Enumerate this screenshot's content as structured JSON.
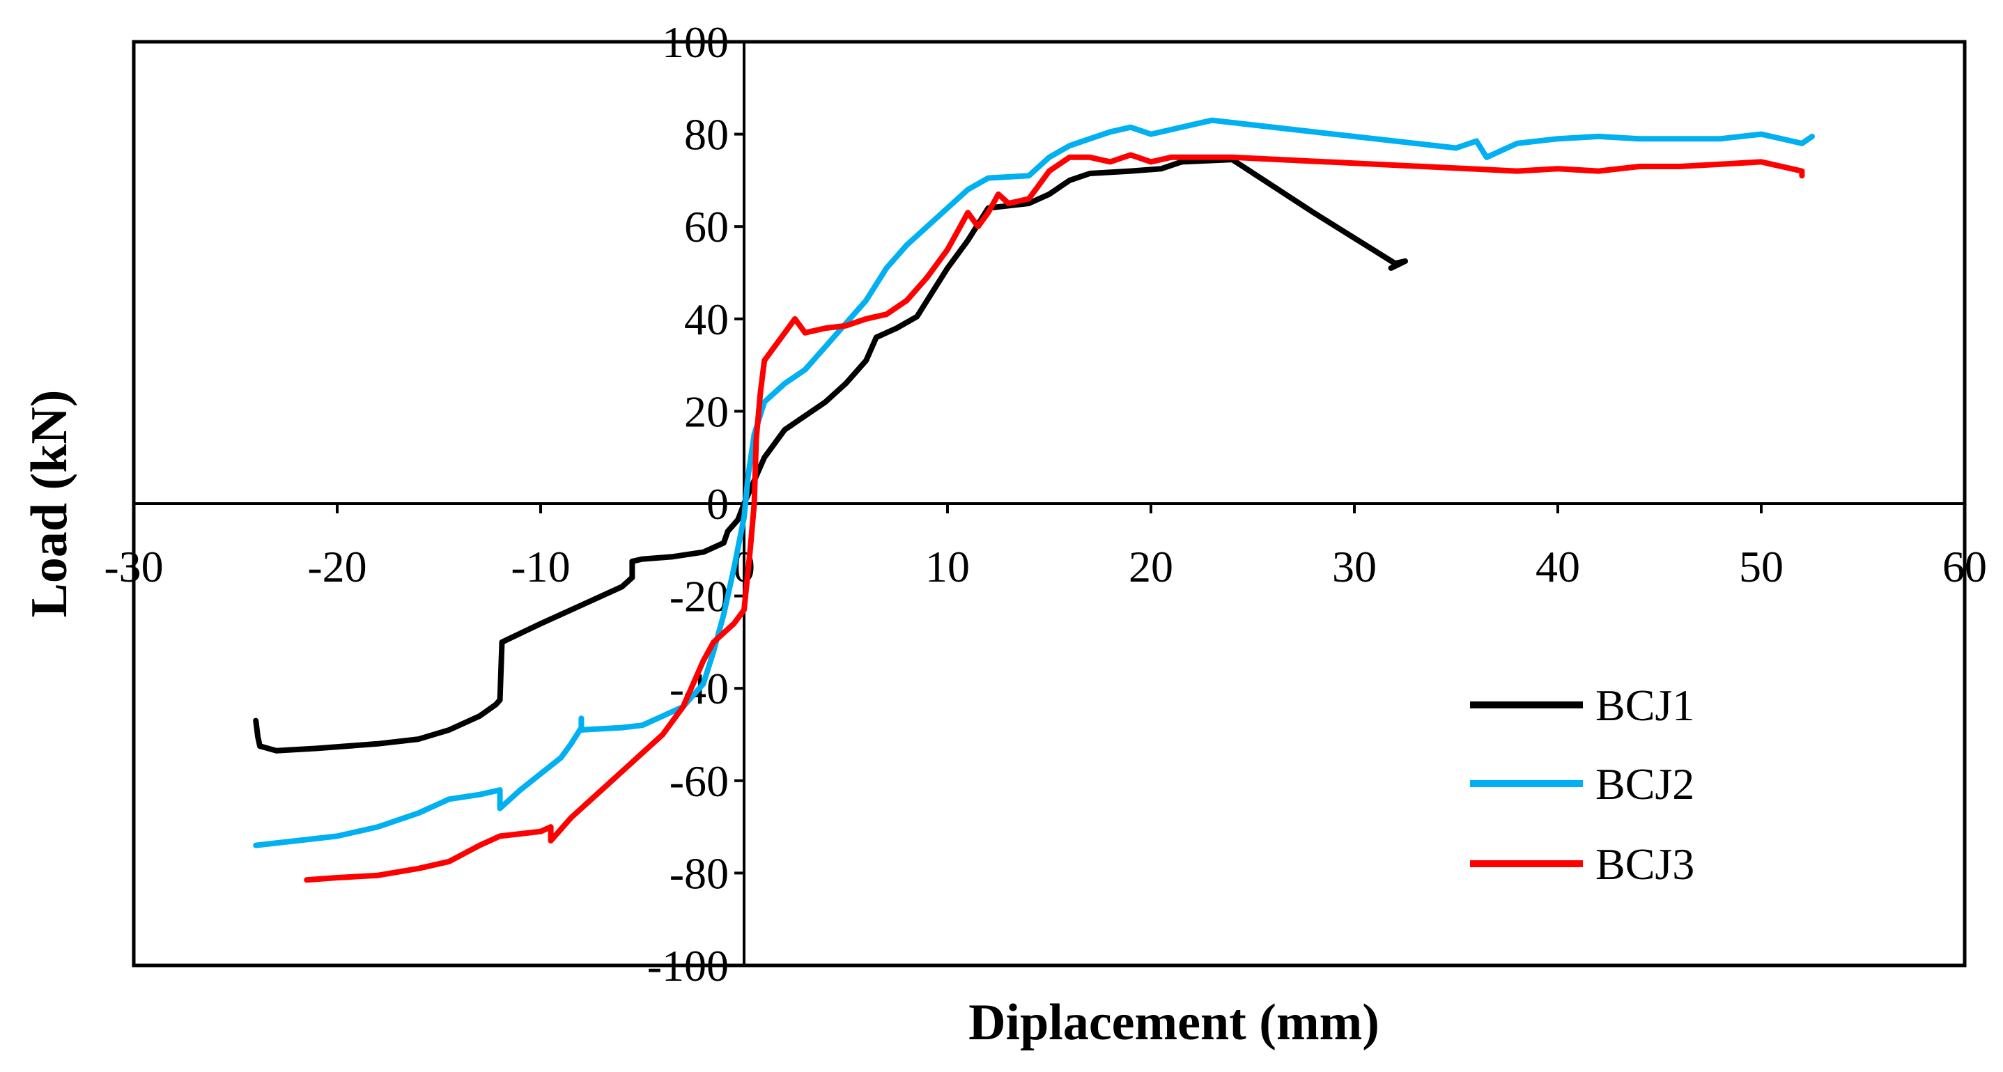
{
  "chart_data": {
    "type": "line",
    "title": "",
    "xlabel": "Diplacement (mm)",
    "ylabel": "Load (kN)",
    "xlim": [
      -30,
      60
    ],
    "ylim": [
      -100,
      100
    ],
    "xticks": [
      -30,
      -20,
      -10,
      0,
      10,
      20,
      30,
      40,
      50,
      60
    ],
    "yticks": [
      100,
      80,
      60,
      40,
      20,
      0,
      -20,
      -40,
      -60,
      -80,
      -100
    ],
    "legend_position": "right",
    "series": [
      {
        "name": "BCJ1",
        "color": "#000000",
        "points": [
          [
            -24.0,
            -47.0
          ],
          [
            -23.9,
            -50.5
          ],
          [
            -23.8,
            -52.5
          ],
          [
            -23.0,
            -53.5
          ],
          [
            -21.0,
            -53.0
          ],
          [
            -18.0,
            -52.0
          ],
          [
            -16.0,
            -51.0
          ],
          [
            -14.5,
            -49.0
          ],
          [
            -13.0,
            -46.0
          ],
          [
            -12.2,
            -43.5
          ],
          [
            -12.0,
            -42.5
          ],
          [
            -11.9,
            -30.0
          ],
          [
            -10.0,
            -26.0
          ],
          [
            -8.0,
            -22.0
          ],
          [
            -6.0,
            -18.0
          ],
          [
            -5.5,
            -16.0
          ],
          [
            -5.5,
            -12.5
          ],
          [
            -5.0,
            -12.0
          ],
          [
            -3.5,
            -11.5
          ],
          [
            -2.0,
            -10.5
          ],
          [
            -1.0,
            -8.5
          ],
          [
            -0.8,
            -6.0
          ],
          [
            -0.3,
            -3.5
          ],
          [
            0.0,
            0.0
          ],
          [
            0.5,
            5.0
          ],
          [
            1.0,
            10.0
          ],
          [
            2.0,
            16.0
          ],
          [
            3.0,
            19.0
          ],
          [
            4.0,
            22.0
          ],
          [
            5.0,
            26.0
          ],
          [
            6.0,
            31.0
          ],
          [
            6.5,
            36.0
          ],
          [
            7.5,
            38.0
          ],
          [
            8.5,
            40.5
          ],
          [
            9.0,
            44.0
          ],
          [
            10.0,
            51.0
          ],
          [
            11.0,
            57.0
          ],
          [
            12.0,
            64.0
          ],
          [
            14.0,
            65.0
          ],
          [
            15.0,
            67.0
          ],
          [
            16.0,
            70.0
          ],
          [
            17.0,
            71.5
          ],
          [
            19.0,
            72.0
          ],
          [
            20.5,
            72.5
          ],
          [
            21.5,
            74.0
          ],
          [
            24.0,
            74.5
          ],
          [
            28.0,
            63.0
          ],
          [
            32.0,
            52.0
          ],
          [
            32.5,
            52.5
          ],
          [
            31.8,
            51.0
          ]
        ]
      },
      {
        "name": "BCJ2",
        "color": "#00B0F0",
        "points": [
          [
            -24.0,
            -74.0
          ],
          [
            -22.0,
            -73.0
          ],
          [
            -20.0,
            -72.0
          ],
          [
            -18.0,
            -70.0
          ],
          [
            -16.0,
            -67.0
          ],
          [
            -14.5,
            -64.0
          ],
          [
            -13.0,
            -63.0
          ],
          [
            -12.0,
            -62.0
          ],
          [
            -12.0,
            -66.0
          ],
          [
            -11.0,
            -62.0
          ],
          [
            -10.0,
            -58.5
          ],
          [
            -9.0,
            -55.0
          ],
          [
            -8.5,
            -52.0
          ],
          [
            -8.0,
            -48.5
          ],
          [
            -8.0,
            -46.5
          ],
          [
            -8.0,
            -49.0
          ],
          [
            -6.0,
            -48.5
          ],
          [
            -5.0,
            -48.0
          ],
          [
            -4.0,
            -46.0
          ],
          [
            -3.0,
            -44.0
          ],
          [
            -2.0,
            -39.0
          ],
          [
            -1.5,
            -32.0
          ],
          [
            -1.0,
            -24.0
          ],
          [
            -0.5,
            -14.0
          ],
          [
            0.0,
            -3.0
          ],
          [
            0.2,
            6.0
          ],
          [
            0.5,
            15.0
          ],
          [
            1.0,
            22.0
          ],
          [
            2.0,
            26.0
          ],
          [
            3.0,
            29.0
          ],
          [
            4.0,
            34.0
          ],
          [
            5.0,
            39.0
          ],
          [
            6.0,
            44.0
          ],
          [
            7.0,
            51.0
          ],
          [
            8.0,
            56.0
          ],
          [
            9.0,
            60.0
          ],
          [
            10.0,
            64.0
          ],
          [
            11.0,
            68.0
          ],
          [
            12.0,
            70.5
          ],
          [
            14.0,
            71.0
          ],
          [
            15.0,
            75.0
          ],
          [
            16.0,
            77.5
          ],
          [
            17.0,
            79.0
          ],
          [
            18.0,
            80.5
          ],
          [
            19.0,
            81.5
          ],
          [
            20.0,
            80.0
          ],
          [
            21.0,
            81.0
          ],
          [
            22.0,
            82.0
          ],
          [
            23.0,
            83.0
          ],
          [
            24.0,
            82.5
          ],
          [
            35.0,
            77.0
          ],
          [
            36.0,
            78.5
          ],
          [
            36.5,
            75.0
          ],
          [
            38.0,
            78.0
          ],
          [
            40.0,
            79.0
          ],
          [
            42.0,
            79.5
          ],
          [
            44.0,
            79.0
          ],
          [
            46.0,
            79.0
          ],
          [
            48.0,
            79.0
          ],
          [
            50.0,
            80.0
          ],
          [
            52.0,
            78.0
          ],
          [
            52.5,
            79.5
          ]
        ]
      },
      {
        "name": "BCJ3",
        "color": "#FF0000",
        "points": [
          [
            -21.5,
            -81.5
          ],
          [
            -20.0,
            -81.0
          ],
          [
            -18.0,
            -80.5
          ],
          [
            -16.0,
            -79.0
          ],
          [
            -14.5,
            -77.5
          ],
          [
            -13.0,
            -74.0
          ],
          [
            -12.0,
            -72.0
          ],
          [
            -10.0,
            -71.0
          ],
          [
            -9.5,
            -70.0
          ],
          [
            -9.5,
            -73.0
          ],
          [
            -8.5,
            -68.0
          ],
          [
            -7.0,
            -62.0
          ],
          [
            -5.5,
            -56.0
          ],
          [
            -4.0,
            -50.0
          ],
          [
            -3.0,
            -44.0
          ],
          [
            -2.5,
            -39.0
          ],
          [
            -2.0,
            -34.0
          ],
          [
            -1.5,
            -30.0
          ],
          [
            -1.0,
            -28.0
          ],
          [
            -0.5,
            -26.0
          ],
          [
            0.0,
            -23.0
          ],
          [
            0.3,
            -10.0
          ],
          [
            0.5,
            0.0
          ],
          [
            0.6,
            14.0
          ],
          [
            0.8,
            24.0
          ],
          [
            1.0,
            31.0
          ],
          [
            1.5,
            34.0
          ],
          [
            2.0,
            37.0
          ],
          [
            2.5,
            40.0
          ],
          [
            3.0,
            37.0
          ],
          [
            4.0,
            38.0
          ],
          [
            5.0,
            38.5
          ],
          [
            6.0,
            40.0
          ],
          [
            7.0,
            41.0
          ],
          [
            8.0,
            44.0
          ],
          [
            9.0,
            49.0
          ],
          [
            10.0,
            55.0
          ],
          [
            11.0,
            63.0
          ],
          [
            11.5,
            60.0
          ],
          [
            12.0,
            63.0
          ],
          [
            12.5,
            67.0
          ],
          [
            13.0,
            65.0
          ],
          [
            14.0,
            66.0
          ],
          [
            15.0,
            72.0
          ],
          [
            16.0,
            75.0
          ],
          [
            17.0,
            75.0
          ],
          [
            18.0,
            74.0
          ],
          [
            19.0,
            75.5
          ],
          [
            20.0,
            74.0
          ],
          [
            21.0,
            75.0
          ],
          [
            24.0,
            75.0
          ],
          [
            38.0,
            72.0
          ],
          [
            40.0,
            72.5
          ],
          [
            42.0,
            72.0
          ],
          [
            44.0,
            73.0
          ],
          [
            46.0,
            73.0
          ],
          [
            48.0,
            73.5
          ],
          [
            50.0,
            74.0
          ],
          [
            52.0,
            72.0
          ],
          [
            52.0,
            71.0
          ]
        ]
      }
    ]
  }
}
